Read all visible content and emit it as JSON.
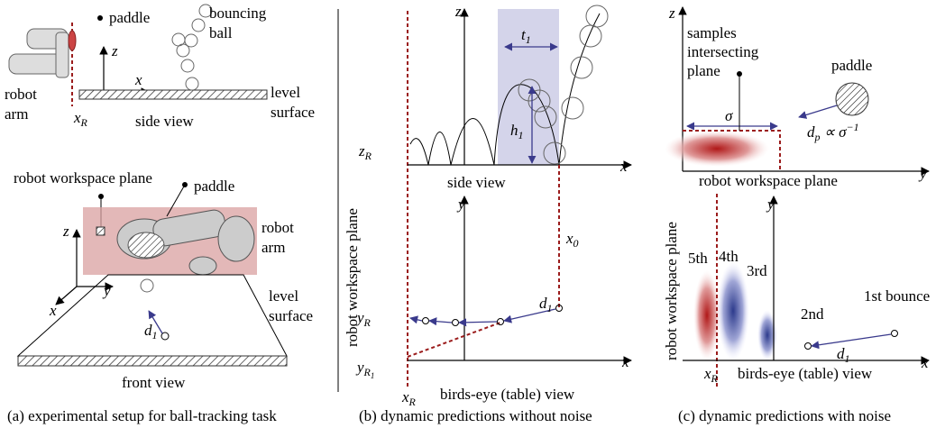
{
  "panel_a": {
    "side_view": {
      "paddle": "paddle",
      "bouncing_ball": [
        "bouncing",
        "ball"
      ],
      "axis_z": "z",
      "axis_x": "x",
      "robot_arm": [
        "robot",
        "arm"
      ],
      "x_R": {
        "base": "x",
        "sub": "R"
      },
      "view_label": "side view",
      "level_surface": [
        "level",
        "surface"
      ]
    },
    "front_view": {
      "workspace_plane": "robot workspace plane",
      "paddle": "paddle",
      "robot_arm": [
        "robot",
        "arm"
      ],
      "axis_z": "z",
      "axis_y": "y",
      "axis_x": "x",
      "level_surface": [
        "level",
        "surface"
      ],
      "d_1": {
        "base": "d",
        "sub": "1"
      },
      "view_label": "front view"
    },
    "caption": "(a) experimental setup for ball-tracking task"
  },
  "panel_b": {
    "side_view": {
      "axis_z": "z",
      "t_1": {
        "base": "t",
        "sub": "1"
      },
      "h_1": {
        "base": "h",
        "sub": "1"
      },
      "z_R": {
        "base": "z",
        "sub": "R"
      },
      "axis_x": "x",
      "view_label": "side view"
    },
    "workspace_plane": "robot workspace plane",
    "birds_eye": {
      "axis_y": "y",
      "x_0": {
        "base": "x",
        "sub": "0"
      },
      "y_R": {
        "base": "y",
        "sub": "R"
      },
      "d_1": {
        "base": "d",
        "sub": "1"
      },
      "y_R1": {
        "base": "y",
        "sub": "R",
        "subsub": "1"
      },
      "x_R": {
        "base": "x",
        "sub": "R"
      },
      "view_label": "birds-eye (table) view",
      "axis_x": "x"
    },
    "caption": "(b) dynamic predictions without noise"
  },
  "panel_c": {
    "plane_view": {
      "axis_z": "z",
      "samples": [
        "samples",
        "intersecting",
        "plane"
      ],
      "paddle": "paddle",
      "sigma": "σ",
      "d_p": {
        "base": "d",
        "sub": "p",
        "rest": " ∝ σ",
        "sup": "−1"
      },
      "view_label": "robot workspace plane",
      "axis_y": "y"
    },
    "workspace_plane": "robot workspace plane",
    "birds_eye": {
      "axis_y": "y",
      "bounces": [
        "5th",
        "4th",
        "3rd",
        "2nd",
        "1st bounce"
      ],
      "d_1": {
        "base": "d",
        "sub": "1"
      },
      "x_R": {
        "base": "x",
        "sub": "R"
      },
      "view_label": "birds-eye (table) view",
      "axis_x": "x"
    },
    "caption": "(c) dynamic predictions with noise"
  }
}
